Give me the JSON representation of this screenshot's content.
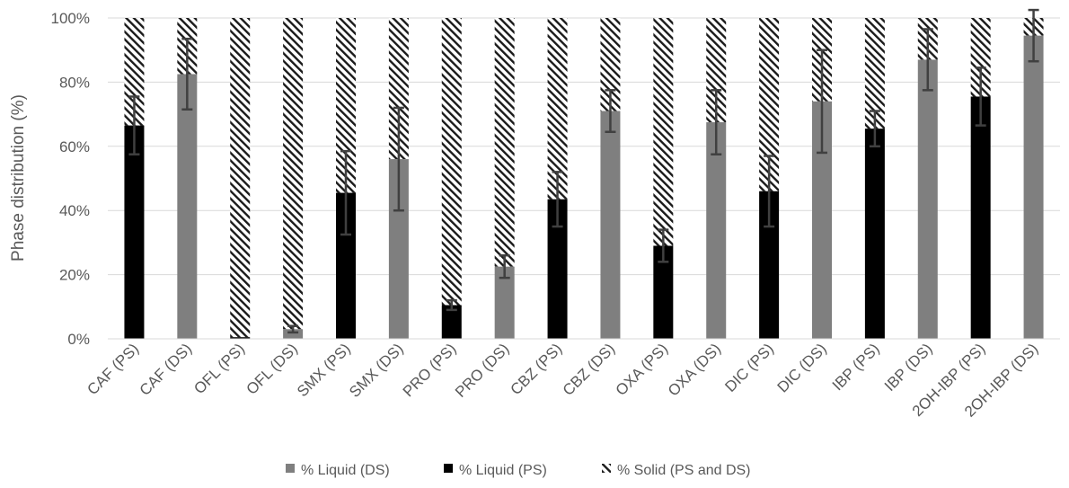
{
  "chart_data": {
    "type": "bar",
    "stacked": true,
    "title": "",
    "xlabel": "",
    "ylabel": "Phase distribution (%)",
    "ylim": [
      0,
      100
    ],
    "yticks": [
      "0%",
      "20%",
      "40%",
      "60%",
      "80%",
      "100%"
    ],
    "grid": true,
    "legend_position": "bottom",
    "categories": [
      "CAF (PS)",
      "CAF (DS)",
      "OFL (PS)",
      "OFL (DS)",
      "SMX (PS)",
      "SMX (DS)",
      "PRO (PS)",
      "PRO (DS)",
      "CBZ (PS)",
      "CBZ (DS)",
      "OXA (PS)",
      "OXA (DS)",
      "DIC (PS)",
      "DIC (DS)",
      "IBP (PS)",
      "IBP (DS)",
      "2OH-IBP (PS)",
      "2OH-IBP (DS)"
    ],
    "series": [
      {
        "name": "% Liquid (DS)",
        "color": "#7f7f7f",
        "pattern": "solid",
        "values": [
          null,
          82.5,
          null,
          3,
          null,
          56,
          null,
          22.5,
          null,
          71,
          null,
          67.5,
          null,
          74,
          null,
          87,
          null,
          94.5
        ],
        "error": [
          null,
          11,
          null,
          1,
          null,
          16,
          null,
          3.5,
          null,
          6.5,
          null,
          10,
          null,
          16,
          null,
          9.5,
          null,
          8
        ]
      },
      {
        "name": "% Liquid (PS)",
        "color": "#000000",
        "pattern": "solid",
        "values": [
          66.5,
          null,
          0.5,
          null,
          45.5,
          null,
          10.5,
          null,
          43.5,
          null,
          29,
          null,
          46,
          null,
          65.5,
          null,
          75.5,
          null
        ],
        "error": [
          9,
          null,
          0,
          null,
          13,
          null,
          1.5,
          null,
          8.5,
          null,
          5,
          null,
          11,
          null,
          5.5,
          null,
          9,
          null
        ]
      },
      {
        "name": "% Solid (PS and DS)",
        "color": "#000000",
        "pattern": "hatched",
        "values": [
          33.5,
          17.5,
          99.5,
          97,
          54.5,
          44,
          89.5,
          77.5,
          56.5,
          29,
          71,
          32.5,
          54,
          26,
          34.5,
          13,
          24.5,
          5.5
        ]
      }
    ]
  }
}
